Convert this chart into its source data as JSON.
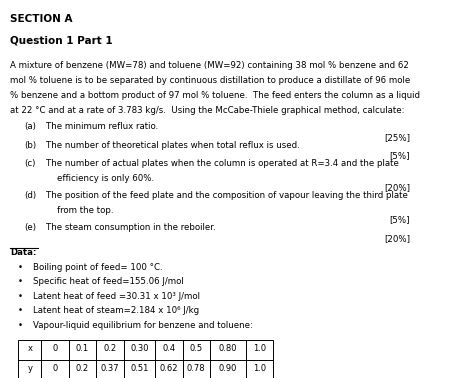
{
  "bg_color": "#ffffff",
  "section_title": "SECTION A",
  "question_title": "Question 1 Part 1",
  "intro_lines": [
    "A mixture of benzene (MW=78) and toluene (MW=92) containing 38 mol % benzene and 62",
    "mol % toluene is to be separated by continuous distillation to produce a distillate of 96 mole",
    "% benzene and a bottom product of 97 mol % toluene.  The feed enters the column as a liquid",
    "at 22 °C and at a rate of 3.783 kg/s.  Using the McCabe-Thiele graphical method, calculate:"
  ],
  "data_label": "Data:",
  "bullets": [
    "Boiling point of feed= 100 °C.",
    "Specific heat of feed=155.06 J/mol",
    "Latent heat of feed =30.31 x 10³ J/mol",
    "Latent heat of steam=2.184 x 10⁶ J/kg",
    "Vapour-liquid equilibrium for benzene and toluene:"
  ],
  "table_x": [
    "x",
    "0",
    "0.1",
    "0.2",
    "0.30",
    "0.4",
    "0.5",
    "0.80",
    "1.0"
  ],
  "table_y": [
    "y",
    "0",
    "0.2",
    "0.37",
    "0.51",
    "0.62",
    "0.78",
    "0.90",
    "1.0"
  ],
  "fs_header": 7.5,
  "fs_body": 6.2,
  "fs_small": 6.0
}
